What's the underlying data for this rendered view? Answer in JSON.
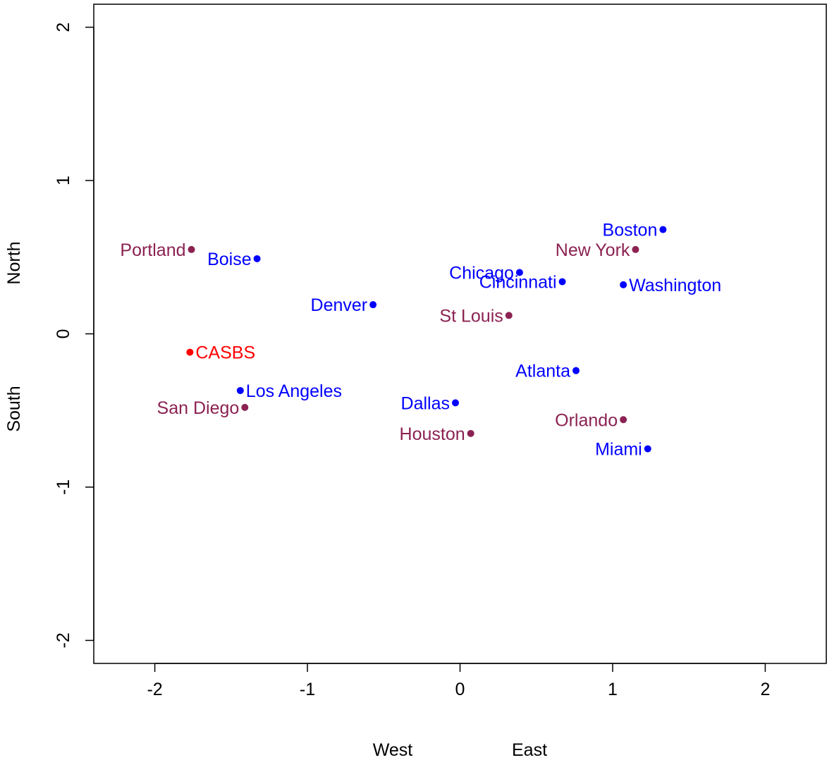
{
  "chart_data": {
    "type": "scatter",
    "title": "",
    "xlim": [
      -2.4,
      2.4
    ],
    "ylim": [
      -2.15,
      2.15
    ],
    "x_ticks": [
      -2,
      -1,
      0,
      1,
      2
    ],
    "y_ticks": [
      -2,
      -1,
      0,
      1,
      2
    ],
    "x_tick_labels": [
      "-2",
      "-1",
      "0",
      "1",
      "2"
    ],
    "y_tick_labels": [
      "-2",
      "-1",
      "0",
      "1",
      "2"
    ],
    "xlabel_left": "West",
    "xlabel_right": "East",
    "ylabel_bottom": "South",
    "ylabel_top": "North",
    "grid": false,
    "colors": {
      "group_blue": "#0000ff",
      "group_maroon": "#8b2252",
      "highlight": "#ff0000"
    },
    "points": [
      {
        "label": "Portland",
        "x": -1.76,
        "y": 0.55,
        "color": "group_maroon",
        "label_side": "left"
      },
      {
        "label": "Boise",
        "x": -1.33,
        "y": 0.49,
        "color": "group_blue",
        "label_side": "left"
      },
      {
        "label": "Denver",
        "x": -0.57,
        "y": 0.19,
        "color": "group_blue",
        "label_side": "left"
      },
      {
        "label": "CASBS",
        "x": -1.77,
        "y": -0.12,
        "color": "highlight",
        "label_side": "right"
      },
      {
        "label": "Los Angeles",
        "x": -1.44,
        "y": -0.37,
        "color": "group_blue",
        "label_side": "right"
      },
      {
        "label": "San Diego",
        "x": -1.41,
        "y": -0.48,
        "color": "group_maroon",
        "label_side": "left"
      },
      {
        "label": "Dallas",
        "x": -0.03,
        "y": -0.45,
        "color": "group_blue",
        "label_side": "left"
      },
      {
        "label": "Houston",
        "x": 0.07,
        "y": -0.65,
        "color": "group_maroon",
        "label_side": "left"
      },
      {
        "label": "St Louis",
        "x": 0.32,
        "y": 0.12,
        "color": "group_maroon",
        "label_side": "left"
      },
      {
        "label": "Chicago",
        "x": 0.39,
        "y": 0.4,
        "color": "group_blue",
        "label_side": "left"
      },
      {
        "label": "Cincinnati",
        "x": 0.67,
        "y": 0.34,
        "color": "group_blue",
        "label_side": "left"
      },
      {
        "label": "Atlanta",
        "x": 0.76,
        "y": -0.24,
        "color": "group_blue",
        "label_side": "left"
      },
      {
        "label": "Boston",
        "x": 1.33,
        "y": 0.68,
        "color": "group_blue",
        "label_side": "left"
      },
      {
        "label": "New York",
        "x": 1.15,
        "y": 0.55,
        "color": "group_maroon",
        "label_side": "left"
      },
      {
        "label": "Washington",
        "x": 1.07,
        "y": 0.32,
        "color": "group_blue",
        "label_side": "right"
      },
      {
        "label": "Orlando",
        "x": 1.07,
        "y": -0.56,
        "color": "group_maroon",
        "label_side": "left"
      },
      {
        "label": "Miami",
        "x": 1.23,
        "y": -0.75,
        "color": "group_blue",
        "label_side": "left"
      }
    ]
  }
}
